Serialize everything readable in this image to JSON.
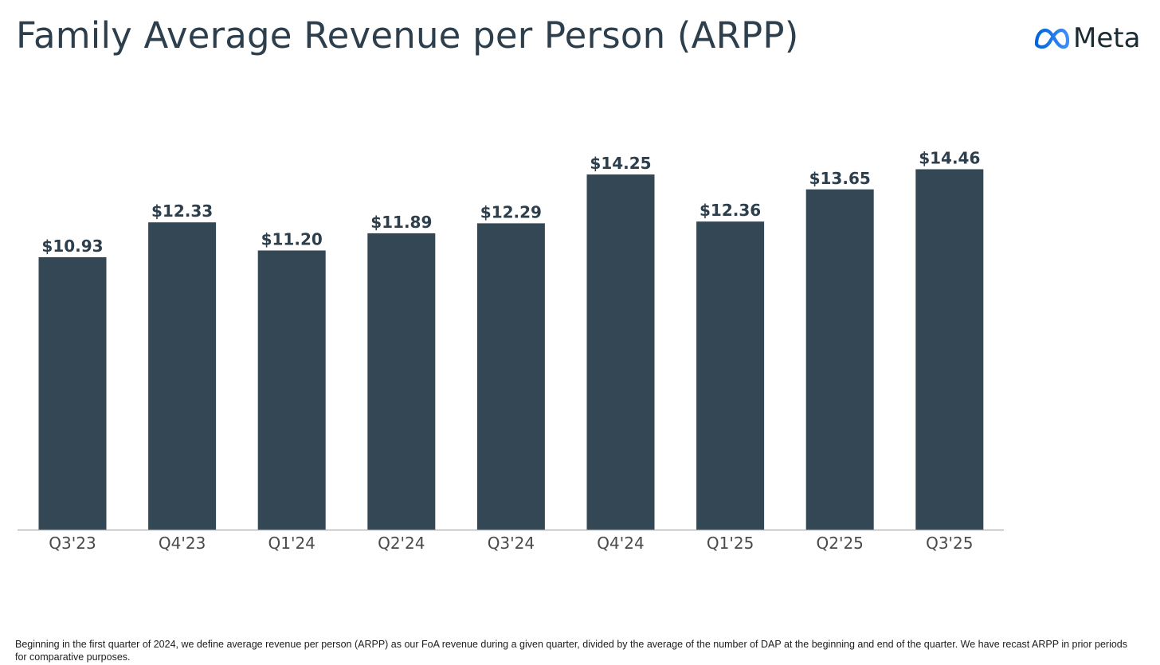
{
  "title": "Family Average Revenue per Person (ARPP)",
  "brand": {
    "name": "Meta",
    "logo_gradient": [
      "#0064e0",
      "#3f8cf5"
    ],
    "text_color": "#1c2b33"
  },
  "colors": {
    "bar": "#344754",
    "label": "#2d3e4c",
    "axis": "#a9a9a9",
    "tick": "#4a4a4a"
  },
  "chart_data": {
    "type": "bar",
    "title": "Family Average Revenue per Person (ARPP)",
    "xlabel": "",
    "ylabel": "",
    "ylim": [
      0,
      15
    ],
    "grid": false,
    "categories": [
      "Q3'23",
      "Q4'23",
      "Q1'24",
      "Q2'24",
      "Q3'24",
      "Q4'24",
      "Q1'25",
      "Q2'25",
      "Q3'25"
    ],
    "values": [
      10.93,
      12.33,
      11.2,
      11.89,
      12.29,
      14.25,
      12.36,
      13.65,
      14.46
    ],
    "value_labels": [
      "$10.93",
      "$12.33",
      "$11.20",
      "$11.89",
      "$12.29",
      "$14.25",
      "$12.36",
      "$13.65",
      "$14.46"
    ]
  },
  "footnote": "Beginning in the first quarter of 2024, we define average revenue per person (ARPP) as our FoA revenue during a given quarter, divided by the average of the number of DAP at the beginning and end of the quarter. We have recast ARPP in prior periods for comparative purposes."
}
